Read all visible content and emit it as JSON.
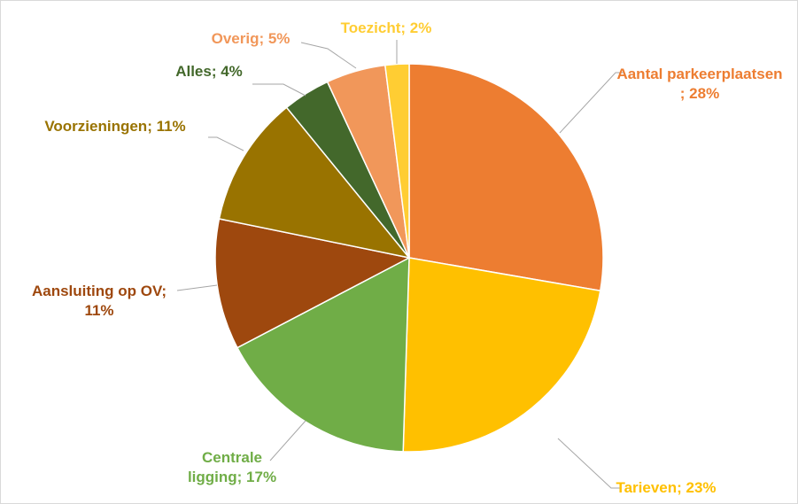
{
  "chart_data": {
    "type": "pie",
    "labels": [
      "Aantal parkeerplaatsen ; 28%",
      "Tarieven; 23%",
      "Centrale ligging; 17%",
      "Aansluiting op OV; 11%",
      "Voorzieningen; 11%",
      "Alles; 4%",
      "Overig; 5%",
      "Toezicht; 2%"
    ],
    "values": [
      28,
      23,
      17,
      11,
      11,
      4,
      5,
      2
    ],
    "colors": [
      "#ED7D31",
      "#FFC000",
      "#70AD47",
      "#9E480E",
      "#997300",
      "#43682B",
      "#F1975A",
      "#FFCD33"
    ]
  }
}
